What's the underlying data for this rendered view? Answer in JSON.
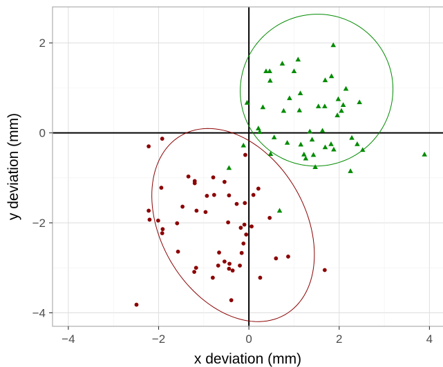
{
  "chart_data": {
    "type": "scatter",
    "title": "",
    "xlabel": "x deviation (mm)",
    "ylabel": "y deviation (mm)",
    "xlim": [
      -4.35,
      4.3
    ],
    "ylim": [
      -4.3,
      2.8
    ],
    "grid": true,
    "xticks": [
      -4,
      -2,
      0,
      2,
      4
    ],
    "yticks": [
      -4,
      -2,
      0,
      2
    ],
    "tick_labels": {
      "x": [
        "−4",
        "−2",
        "0",
        "2",
        "4"
      ],
      "y": [
        "−4",
        "−2",
        "0",
        "2"
      ]
    },
    "reference_lines": {
      "x": 0,
      "y": 0
    },
    "colors": {
      "group1": "#8b0000",
      "group2": "#008b00",
      "grid": "#e0e0e0",
      "panel_border": "#b3b3b3",
      "reference": "#000000"
    },
    "series": [
      {
        "marker": "circle",
        "color": "#8b0000",
        "points": [
          [
            -2.49,
            -3.82
          ],
          [
            -2.22,
            -0.3
          ],
          [
            -1.92,
            -0.13
          ],
          [
            -2.22,
            -1.73
          ],
          [
            -2.2,
            -1.93
          ],
          [
            -2.01,
            -1.95
          ],
          [
            -1.94,
            -1.22
          ],
          [
            -1.91,
            -2.14
          ],
          [
            -1.92,
            -2.23
          ],
          [
            -1.57,
            -2.64
          ],
          [
            -1.47,
            -1.64
          ],
          [
            -1.59,
            -2.01
          ],
          [
            -1.34,
            -0.97
          ],
          [
            -1.2,
            -1.07
          ],
          [
            -1.2,
            -1.12
          ],
          [
            -1.16,
            -1.73
          ],
          [
            -1.17,
            -3.0
          ],
          [
            -1.21,
            -3.09
          ],
          [
            -0.96,
            -1.76
          ],
          [
            -0.93,
            -1.4
          ],
          [
            -0.79,
            -0.99
          ],
          [
            -0.77,
            -1.38
          ],
          [
            -0.66,
            -2.66
          ],
          [
            -0.68,
            -2.95
          ],
          [
            -0.54,
            -2.86
          ],
          [
            -0.54,
            -1.09
          ],
          [
            -0.44,
            -1.39
          ],
          [
            -0.46,
            -1.99
          ],
          [
            -0.43,
            -2.91
          ],
          [
            -0.36,
            -3.06
          ],
          [
            -0.44,
            -3.02
          ],
          [
            -0.27,
            -1.58
          ],
          [
            -0.18,
            -2.11
          ],
          [
            -0.12,
            -2.46
          ],
          [
            -0.2,
            -2.95
          ],
          [
            -0.16,
            -2.67
          ],
          [
            -0.1,
            -2.04
          ],
          [
            -0.06,
            -2.26
          ],
          [
            -0.08,
            -0.49
          ],
          [
            0.06,
            -2.08
          ],
          [
            0.1,
            -1.38
          ],
          [
            0.21,
            -1.24
          ],
          [
            0.25,
            -3.22
          ],
          [
            0.46,
            -1.89
          ],
          [
            0.6,
            -2.79
          ],
          [
            0.87,
            -2.75
          ],
          [
            1.68,
            -3.05
          ],
          [
            -0.39,
            -3.72
          ],
          [
            -0.8,
            -3.22
          ],
          [
            -0.09,
            -1.56
          ]
        ]
      },
      {
        "marker": "triangle",
        "color": "#008b00",
        "points": [
          [
            -0.04,
            0.67
          ],
          [
            0.21,
            0.1
          ],
          [
            0.31,
            0.57
          ],
          [
            0.38,
            1.37
          ],
          [
            0.46,
            1.37
          ],
          [
            0.47,
            1.16
          ],
          [
            0.48,
            -0.47
          ],
          [
            0.56,
            -0.1
          ],
          [
            0.74,
            1.54
          ],
          [
            0.77,
            0.49
          ],
          [
            0.85,
            -0.22
          ],
          [
            0.9,
            0.77
          ],
          [
            1.0,
            1.37
          ],
          [
            1.09,
            1.63
          ],
          [
            1.12,
            0.5
          ],
          [
            1.14,
            0.88
          ],
          [
            1.15,
            -0.26
          ],
          [
            1.22,
            -0.48
          ],
          [
            1.26,
            -0.57
          ],
          [
            1.35,
            0.03
          ],
          [
            1.43,
            -0.49
          ],
          [
            1.47,
            -0.76
          ],
          [
            1.54,
            0.59
          ],
          [
            1.63,
            0.05
          ],
          [
            1.68,
            0.59
          ],
          [
            1.69,
            1.17
          ],
          [
            1.69,
            -0.32
          ],
          [
            1.83,
            1.26
          ],
          [
            1.82,
            -0.25
          ],
          [
            1.88,
            -0.37
          ],
          [
            1.87,
            1.95
          ],
          [
            1.96,
            0.39
          ],
          [
            1.98,
            0.75
          ],
          [
            2.05,
            0.49
          ],
          [
            2.09,
            0.62
          ],
          [
            2.15,
            0.98
          ],
          [
            2.25,
            -0.85
          ],
          [
            2.28,
            -0.11
          ],
          [
            2.4,
            -0.25
          ],
          [
            2.45,
            0.68
          ],
          [
            2.52,
            -0.38
          ],
          [
            3.89,
            -0.48
          ],
          [
            0.68,
            -1.73
          ],
          [
            -0.44,
            -0.78
          ],
          [
            -0.12,
            -0.28
          ],
          [
            1.4,
            -0.15
          ],
          [
            0.24,
            0.02
          ]
        ]
      }
    ],
    "ellipses": [
      {
        "color": "#8b0000",
        "center": [
          -0.35,
          -2.05
        ],
        "semi_major": 2.3,
        "semi_minor": 1.6,
        "angle_deg": -60
      },
      {
        "color": "#008b00",
        "center": [
          1.5,
          0.95
        ],
        "semi_major": 1.68,
        "semi_minor": 1.7,
        "angle_deg": -50
      }
    ]
  }
}
